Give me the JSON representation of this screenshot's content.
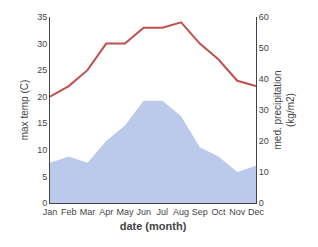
{
  "chart_data": {
    "type": "line",
    "xlabel": "date (month)",
    "ylabel": "max temp (C)",
    "y2label": "med. precipitation\n(kg/m2)",
    "categories": [
      "Jan",
      "Feb",
      "Mar",
      "Apr",
      "May",
      "Jun",
      "Jul",
      "Aug",
      "Sep",
      "Oct",
      "Nov",
      "Dec"
    ],
    "series": [
      {
        "type": "line",
        "color": "#c0504d",
        "values": [
          20,
          22,
          25,
          30,
          30,
          33,
          33,
          34,
          30,
          27,
          23,
          22
        ]
      },
      {
        "type": "area",
        "color": "#bbc9ea",
        "axis": "y2",
        "values": [
          13,
          15,
          13,
          20,
          25,
          33,
          33,
          28,
          18,
          15,
          10,
          12
        ]
      }
    ],
    "ylim": [
      0,
      35
    ],
    "yticks": [
      0,
      5,
      10,
      15,
      20,
      25,
      30,
      35
    ],
    "y2lim": [
      0,
      60
    ],
    "y2ticks": [
      0,
      10,
      20,
      30,
      40,
      50,
      60
    ],
    "grid": false
  }
}
